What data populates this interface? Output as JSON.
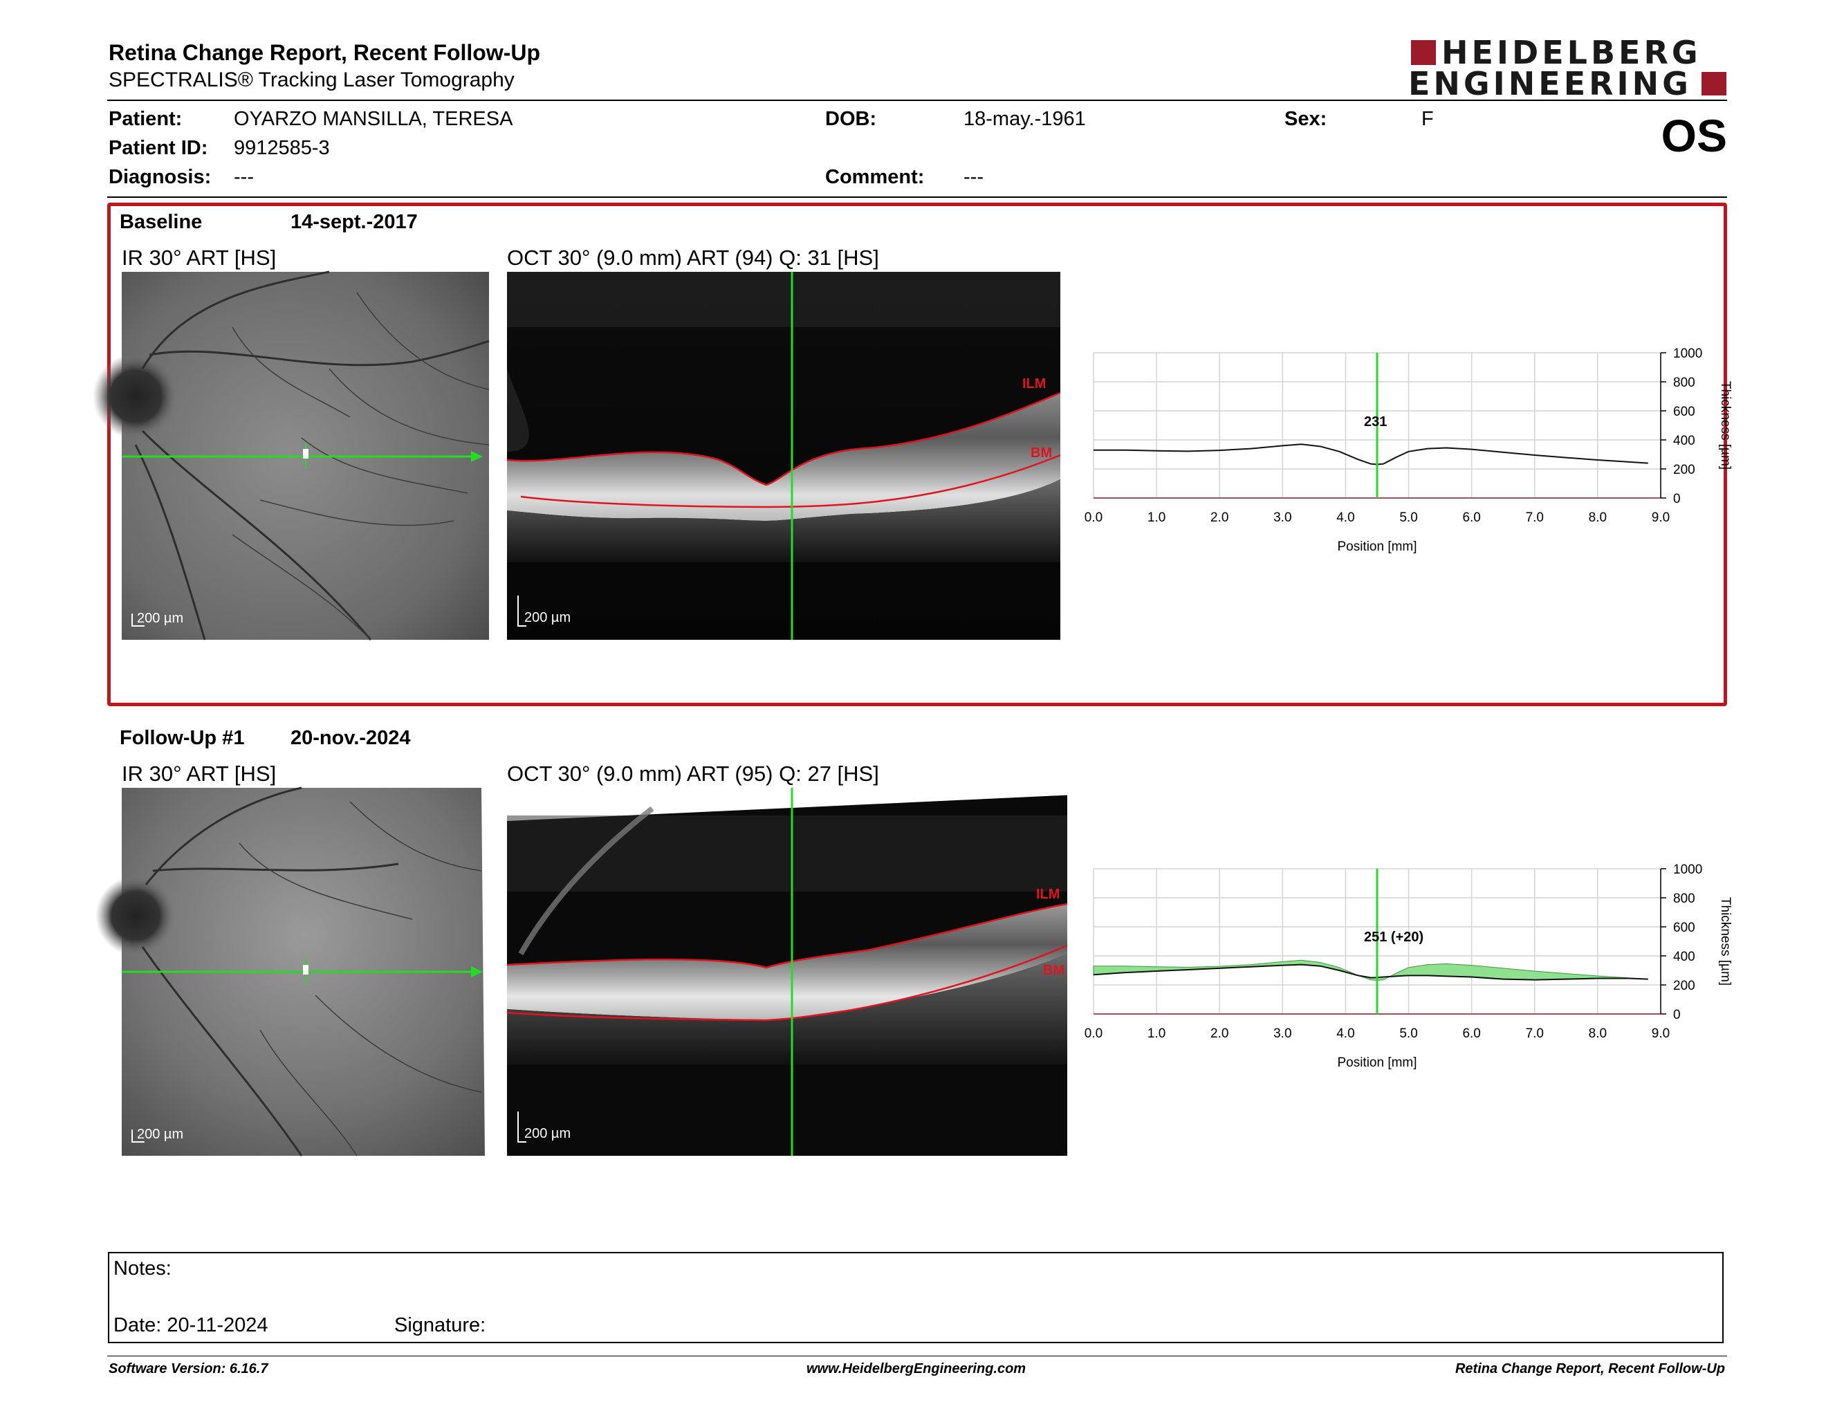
{
  "header": {
    "title": "Retina Change Report, Recent Follow-Up",
    "subtitle": "SPECTRALIS® Tracking Laser Tomography",
    "brand_line1": "HEIDELBERG",
    "brand_line2": "ENGINEERING",
    "brand_color": "#9c1b2a",
    "eye": "OS"
  },
  "patient": {
    "name_label": "Patient:",
    "name": "OYARZO MANSILLA, TERESA",
    "id_label": "Patient ID:",
    "id": "9912585-3",
    "diagnosis_label": "Diagnosis:",
    "diagnosis": "---",
    "dob_label": "DOB:",
    "dob": "18-may.-1961",
    "comment_label": "Comment:",
    "comment": "---",
    "sex_label": "Sex:",
    "sex": "F"
  },
  "baseline": {
    "label": "Baseline",
    "date": "14-sept.-2017",
    "ir_caption": "IR 30° ART [HS]",
    "oct_caption": "OCT 30° (9.0 mm) ART (94) Q: 31 [HS]",
    "scale_ir": "200 µm",
    "scale_oct": "200 µm",
    "ilm": "ILM",
    "bm": "BM",
    "cursor_value": "231"
  },
  "followup": {
    "label": "Follow-Up #1",
    "date": "20-nov.-2024",
    "ir_caption": "IR 30° ART [HS]",
    "oct_caption": "OCT 30° (9.0 mm) ART (95) Q: 27 [HS]",
    "scale_ir": "200 µm",
    "scale_oct": "200 µm",
    "ilm": "ILM",
    "bm": "BM",
    "cursor_value": "251 (+20)"
  },
  "chart_data": [
    {
      "type": "line",
      "xlabel": "Position [mm]",
      "ylabel": "Thickness [µm]",
      "xlim": [
        0,
        9
      ],
      "ylim": [
        0,
        1000
      ],
      "x_ticks": [
        "0.0",
        "1.0",
        "2.0",
        "3.0",
        "4.0",
        "5.0",
        "6.0",
        "7.0",
        "8.0",
        "9.0"
      ],
      "y_ticks": [
        "0",
        "200",
        "400",
        "600",
        "800",
        "1000"
      ],
      "cursor_x": 4.5,
      "series": [
        {
          "x": [
            0.0,
            0.5,
            1.0,
            1.5,
            2.0,
            2.5,
            3.0,
            3.3,
            3.6,
            3.9,
            4.2,
            4.4,
            4.5,
            4.6,
            4.8,
            5.0,
            5.3,
            5.6,
            6.0,
            6.5,
            7.0,
            7.5,
            8.0,
            8.5,
            8.8
          ],
          "y": [
            330,
            330,
            325,
            322,
            328,
            340,
            360,
            370,
            355,
            320,
            265,
            235,
            231,
            235,
            280,
            320,
            340,
            345,
            335,
            315,
            295,
            278,
            262,
            248,
            240
          ]
        }
      ]
    },
    {
      "type": "area",
      "xlabel": "Position [mm]",
      "ylabel": "Thickness [µm]",
      "xlim": [
        0,
        9
      ],
      "ylim": [
        0,
        1000
      ],
      "x_ticks": [
        "0.0",
        "1.0",
        "2.0",
        "3.0",
        "4.0",
        "5.0",
        "6.0",
        "7.0",
        "8.0",
        "9.0"
      ],
      "y_ticks": [
        "0",
        "200",
        "400",
        "600",
        "800",
        "1000"
      ],
      "cursor_x": 4.5,
      "fill_color": "#8fe08f",
      "series": [
        {
          "x": [
            0.0,
            0.5,
            1.0,
            1.5,
            2.0,
            2.5,
            3.0,
            3.3,
            3.6,
            3.9,
            4.2,
            4.4,
            4.5,
            4.6,
            4.8,
            5.0,
            5.3,
            5.6,
            6.0,
            6.5,
            7.0,
            7.5,
            8.0,
            8.5,
            8.8
          ],
          "y": [
            270,
            285,
            295,
            305,
            315,
            325,
            335,
            340,
            330,
            300,
            265,
            250,
            251,
            255,
            260,
            265,
            265,
            260,
            255,
            240,
            235,
            240,
            245,
            245,
            240
          ]
        },
        {
          "x": [
            0.0,
            0.5,
            1.0,
            1.5,
            2.0,
            2.5,
            3.0,
            3.3,
            3.6,
            3.9,
            4.2,
            4.4,
            4.5,
            4.6,
            4.8,
            5.0,
            5.3,
            5.6,
            6.0,
            6.5,
            7.0,
            7.5,
            8.0,
            8.5,
            8.8
          ],
          "y": [
            330,
            330,
            325,
            322,
            328,
            340,
            360,
            370,
            355,
            320,
            265,
            235,
            231,
            235,
            280,
            320,
            340,
            345,
            335,
            315,
            295,
            278,
            262,
            248,
            240
          ]
        }
      ]
    }
  ],
  "notes": {
    "notes_label": "Notes:",
    "date_label": "Date: 20-11-2024",
    "signature_label": "Signature:"
  },
  "footer": {
    "software": "Software Version: 6.16.7",
    "website": "www.HeidelbergEngineering.com",
    "report": "Retina Change Report, Recent Follow-Up"
  }
}
